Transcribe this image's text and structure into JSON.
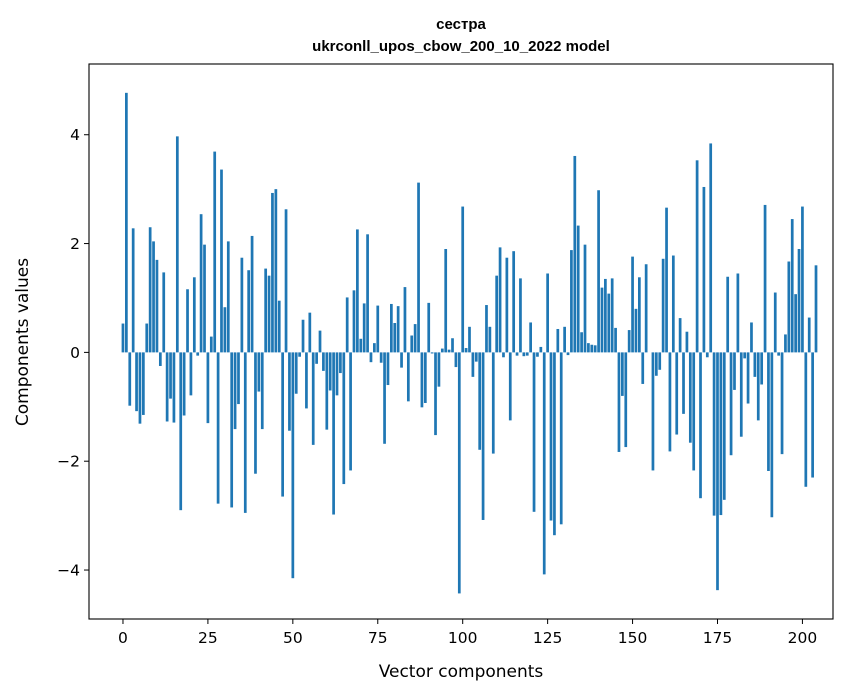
{
  "colors": {
    "bar": "#1f77b4"
  },
  "chart_data": {
    "type": "bar",
    "title_line1": "сестра",
    "title_line2": "ukrconll_upos_cbow_200_10_2022 model",
    "xlabel": "Vector components",
    "ylabel": "Components values",
    "xlim": [
      -10,
      209
    ],
    "ylim": [
      -4.9,
      5.3
    ],
    "xticks": [
      0,
      25,
      50,
      75,
      100,
      125,
      150,
      175,
      200
    ],
    "yticks": [
      -4,
      -2,
      0,
      2,
      4
    ],
    "ytick_labels": [
      "−4",
      "−2",
      "0",
      "2",
      "4"
    ],
    "grid": false,
    "legend": "none",
    "values": [
      0.53,
      4.77,
      -0.98,
      2.28,
      -1.08,
      -1.31,
      -1.15,
      0.53,
      2.3,
      2.04,
      1.7,
      -0.25,
      1.47,
      -1.27,
      -0.85,
      -1.29,
      3.97,
      -2.9,
      -1.16,
      1.16,
      -0.79,
      1.38,
      -0.06,
      2.54,
      1.98,
      -1.3,
      0.29,
      3.69,
      -2.78,
      3.36,
      0.83,
      2.04,
      -2.85,
      -1.41,
      -0.95,
      1.74,
      -2.95,
      1.51,
      2.14,
      -2.23,
      -0.72,
      -1.41,
      1.54,
      1.41,
      2.93,
      3.0,
      0.95,
      -2.65,
      2.63,
      -1.44,
      -4.15,
      -0.76,
      -0.08,
      0.6,
      -1.03,
      0.73,
      -1.7,
      -0.21,
      0.4,
      -0.34,
      -1.42,
      -0.7,
      -2.98,
      -0.79,
      -0.38,
      -2.42,
      1.01,
      -2.17,
      1.14,
      2.26,
      0.25,
      0.9,
      2.17,
      -0.18,
      0.17,
      0.86,
      -0.19,
      -1.68,
      -0.6,
      0.89,
      0.54,
      0.85,
      -0.28,
      1.2,
      -0.9,
      0.31,
      0.52,
      3.12,
      -1.01,
      -0.93,
      0.91,
      -0.02,
      -1.52,
      -0.63,
      0.07,
      1.9,
      0.05,
      0.26,
      -0.27,
      -4.43,
      2.68,
      0.08,
      0.47,
      -0.45,
      -0.17,
      -1.79,
      -3.08,
      0.87,
      0.47,
      -1.86,
      1.41,
      1.93,
      -0.09,
      1.74,
      -1.25,
      1.86,
      -0.06,
      1.36,
      -0.07,
      -0.06,
      0.55,
      -2.93,
      -0.08,
      0.1,
      -4.08,
      1.45,
      -3.09,
      -3.36,
      0.43,
      -3.16,
      0.47,
      -0.05,
      1.88,
      3.61,
      2.33,
      0.37,
      1.98,
      0.17,
      0.14,
      0.13,
      2.98,
      1.19,
      1.35,
      1.08,
      1.36,
      0.45,
      -1.83,
      -0.8,
      -1.74,
      0.41,
      1.76,
      0.8,
      1.38,
      -0.58,
      1.62,
      0.0,
      -2.17,
      -0.43,
      -0.32,
      1.72,
      2.66,
      -1.82,
      1.78,
      -1.51,
      0.63,
      -1.13,
      0.38,
      -1.66,
      -2.17,
      3.53,
      -2.68,
      3.04,
      -0.09,
      3.84,
      -3.0,
      -4.37,
      -2.99,
      -2.71,
      1.39,
      -1.89,
      -0.69,
      1.45,
      -1.55,
      -0.11,
      -0.94,
      0.55,
      -0.45,
      -1.25,
      -0.59,
      2.71,
      -2.18,
      -3.03,
      1.1,
      -0.06,
      -1.87,
      0.33,
      1.67,
      2.45,
      1.07,
      1.9,
      2.68,
      -2.47,
      0.64,
      -2.3,
      1.6
    ]
  }
}
